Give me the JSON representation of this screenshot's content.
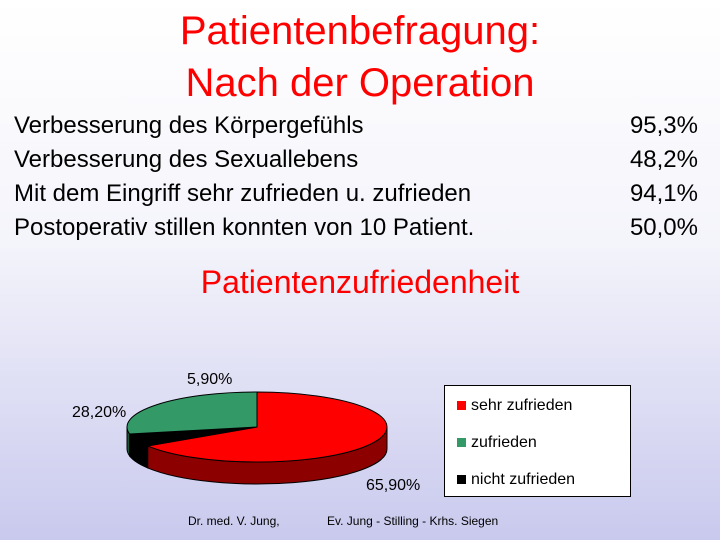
{
  "header": {
    "title_line1": "Patientenbefragung:",
    "title_line2": "Nach der Operation"
  },
  "stats": [
    {
      "label": "Verbesserung des Körpergefühls",
      "value": "95,3%"
    },
    {
      "label": "Verbesserung des Sexuallebens",
      "value": "48,2%"
    },
    {
      "label": "Mit dem Eingriff sehr zufrieden u. zufrieden",
      "value": "94,1%"
    },
    {
      "label": "Postoperativ stillen konnten von 10 Patient.",
      "value": "50,0%"
    }
  ],
  "chart_data": {
    "type": "pie",
    "title": "Patientenzufriedenheit",
    "labels": [
      "sehr zufrieden",
      "zufrieden",
      "nicht zufrieden"
    ],
    "values": [
      65.9,
      28.2,
      5.9
    ],
    "data_labels": [
      "65,90%",
      "28,20%",
      "5,90%"
    ],
    "colors": [
      "#ff0000",
      "#339966",
      "#000000"
    ],
    "style": "3d",
    "legend_position": "right"
  },
  "footer": {
    "author": "Dr. med. V. Jung,",
    "institution": "Ev. Jung - Stilling - Krhs. Siegen"
  }
}
